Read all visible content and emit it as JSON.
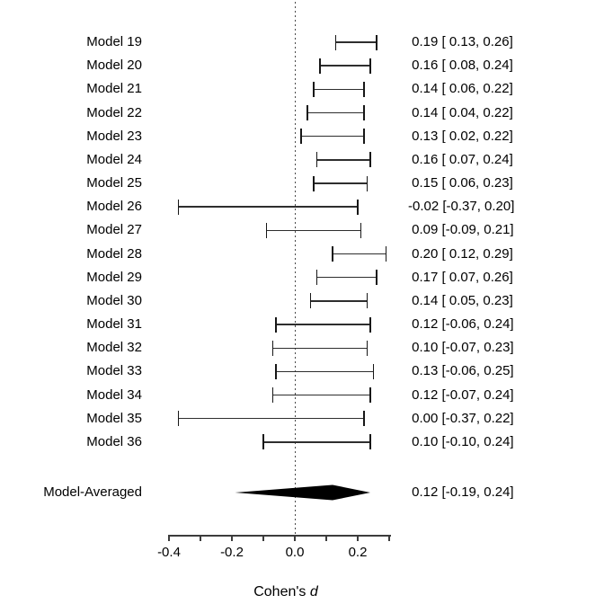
{
  "chart_data": {
    "type": "forest",
    "title": "",
    "xlabel_prefix": "Cohen's ",
    "xlabel_italic": "d",
    "xlim": [
      -0.4,
      0.3
    ],
    "grid": false,
    "reference_line": 0,
    "x_ticks": [
      {
        "value": -0.4,
        "label": "-0.4"
      },
      {
        "value": -0.3,
        "label": ""
      },
      {
        "value": -0.2,
        "label": "-0.2"
      },
      {
        "value": -0.1,
        "label": ""
      },
      {
        "value": 0.0,
        "label": "0.0"
      },
      {
        "value": 0.1,
        "label": ""
      },
      {
        "value": 0.2,
        "label": "0.2"
      },
      {
        "value": 0.3,
        "label": ""
      }
    ],
    "rows": [
      {
        "label": "Model 19",
        "estimate": 0.19,
        "ci_lower": 0.13,
        "ci_upper": 0.26,
        "estimate_label": "0.19 [ 0.13, 0.26]"
      },
      {
        "label": "Model 20",
        "estimate": 0.16,
        "ci_lower": 0.08,
        "ci_upper": 0.24,
        "estimate_label": "0.16 [ 0.08, 0.24]"
      },
      {
        "label": "Model 21",
        "estimate": 0.14,
        "ci_lower": 0.06,
        "ci_upper": 0.22,
        "estimate_label": "0.14 [ 0.06, 0.22]"
      },
      {
        "label": "Model 22",
        "estimate": 0.14,
        "ci_lower": 0.04,
        "ci_upper": 0.22,
        "estimate_label": "0.14 [ 0.04, 0.22]"
      },
      {
        "label": "Model 23",
        "estimate": 0.13,
        "ci_lower": 0.02,
        "ci_upper": 0.22,
        "estimate_label": "0.13 [ 0.02, 0.22]"
      },
      {
        "label": "Model 24",
        "estimate": 0.16,
        "ci_lower": 0.07,
        "ci_upper": 0.24,
        "estimate_label": "0.16 [ 0.07, 0.24]"
      },
      {
        "label": "Model 25",
        "estimate": 0.15,
        "ci_lower": 0.06,
        "ci_upper": 0.23,
        "estimate_label": "0.15 [ 0.06, 0.23]"
      },
      {
        "label": "Model 26",
        "estimate": -0.02,
        "ci_lower": -0.37,
        "ci_upper": 0.2,
        "estimate_label": "-0.02 [-0.37, 0.20]"
      },
      {
        "label": "Model 27",
        "estimate": 0.09,
        "ci_lower": -0.09,
        "ci_upper": 0.21,
        "estimate_label": "0.09 [-0.09, 0.21]"
      },
      {
        "label": "Model 28",
        "estimate": 0.2,
        "ci_lower": 0.12,
        "ci_upper": 0.29,
        "estimate_label": "0.20 [ 0.12, 0.29]"
      },
      {
        "label": "Model 29",
        "estimate": 0.17,
        "ci_lower": 0.07,
        "ci_upper": 0.26,
        "estimate_label": "0.17 [ 0.07, 0.26]"
      },
      {
        "label": "Model 30",
        "estimate": 0.14,
        "ci_lower": 0.05,
        "ci_upper": 0.23,
        "estimate_label": "0.14 [ 0.05, 0.23]"
      },
      {
        "label": "Model 31",
        "estimate": 0.12,
        "ci_lower": -0.06,
        "ci_upper": 0.24,
        "estimate_label": "0.12 [-0.06, 0.24]"
      },
      {
        "label": "Model 32",
        "estimate": 0.1,
        "ci_lower": -0.07,
        "ci_upper": 0.23,
        "estimate_label": "0.10 [-0.07, 0.23]"
      },
      {
        "label": "Model 33",
        "estimate": 0.13,
        "ci_lower": -0.06,
        "ci_upper": 0.25,
        "estimate_label": "0.13 [-0.06, 0.25]"
      },
      {
        "label": "Model 34",
        "estimate": 0.12,
        "ci_lower": -0.07,
        "ci_upper": 0.24,
        "estimate_label": "0.12 [-0.07, 0.24]"
      },
      {
        "label": "Model 35",
        "estimate": 0.0,
        "ci_lower": -0.37,
        "ci_upper": 0.22,
        "estimate_label": "0.00 [-0.37, 0.22]"
      },
      {
        "label": "Model 36",
        "estimate": 0.1,
        "ci_lower": -0.1,
        "ci_upper": 0.24,
        "estimate_label": "0.10 [-0.10, 0.24]"
      }
    ],
    "summary": {
      "label": "Model-Averaged",
      "estimate": 0.12,
      "ci_lower": -0.19,
      "ci_upper": 0.24,
      "estimate_label": "0.12 [-0.19, 0.24]"
    },
    "colors": {
      "line": "#2e2e2e",
      "diamond_fill": "#000000",
      "text": "#000000"
    }
  }
}
